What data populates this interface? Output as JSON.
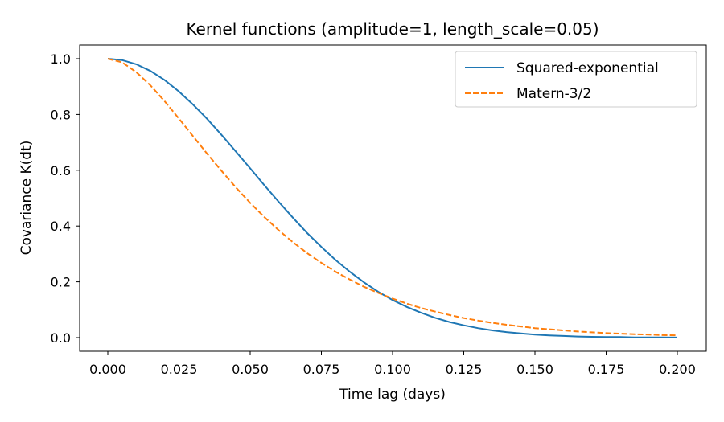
{
  "chart_data": {
    "type": "line",
    "title": "Kernel functions (amplitude=1, length_scale=0.05)",
    "xlabel": "Time lag (days)",
    "ylabel": "Covariance K(dt)",
    "xlim": [
      -0.01,
      0.21
    ],
    "ylim": [
      -0.05,
      1.05
    ],
    "xticks": [
      "0.000",
      "0.025",
      "0.050",
      "0.075",
      "0.100",
      "0.125",
      "0.150",
      "0.175",
      "0.200"
    ],
    "xtick_values": [
      0,
      0.025,
      0.05,
      0.075,
      0.1,
      0.125,
      0.15,
      0.175,
      0.2
    ],
    "yticks": [
      "0.0",
      "0.2",
      "0.4",
      "0.6",
      "0.8",
      "1.0"
    ],
    "ytick_values": [
      0,
      0.2,
      0.4,
      0.6,
      0.8,
      1.0
    ],
    "grid": false,
    "legend_position": "top-right",
    "x": [
      0,
      0.005,
      0.01,
      0.015,
      0.02,
      0.025,
      0.03,
      0.035,
      0.04,
      0.045,
      0.05,
      0.055,
      0.06,
      0.065,
      0.07,
      0.075,
      0.08,
      0.085,
      0.09,
      0.095,
      0.1,
      0.105,
      0.11,
      0.115,
      0.12,
      0.125,
      0.13,
      0.135,
      0.14,
      0.145,
      0.15,
      0.155,
      0.16,
      0.165,
      0.17,
      0.175,
      0.18,
      0.185,
      0.19,
      0.195,
      0.2
    ],
    "series": [
      {
        "name": "Squared-exponential",
        "color": "#1f77b4",
        "style": "solid",
        "values": [
          1,
          0.995,
          0.98,
          0.956,
          0.923,
          0.882,
          0.835,
          0.783,
          0.726,
          0.667,
          0.607,
          0.546,
          0.487,
          0.43,
          0.375,
          0.325,
          0.278,
          0.236,
          0.198,
          0.164,
          0.135,
          0.11,
          0.089,
          0.071,
          0.056,
          0.044,
          0.034,
          0.026,
          0.02,
          0.015,
          0.011,
          0.008,
          0.006,
          0.004,
          0.003,
          0.002,
          0.002,
          0.001,
          0.001,
          0.0005,
          0.0003
        ]
      },
      {
        "name": "Matern-3/2",
        "color": "#ff7f0e",
        "style": "dashed",
        "values": [
          1,
          0.987,
          0.952,
          0.904,
          0.847,
          0.785,
          0.721,
          0.658,
          0.597,
          0.538,
          0.483,
          0.432,
          0.385,
          0.342,
          0.303,
          0.268,
          0.236,
          0.208,
          0.182,
          0.16,
          0.14,
          0.122,
          0.106,
          0.093,
          0.081,
          0.07,
          0.061,
          0.053,
          0.046,
          0.04,
          0.034,
          0.03,
          0.026,
          0.022,
          0.019,
          0.016,
          0.014,
          0.012,
          0.011,
          0.009,
          0.008
        ]
      }
    ]
  }
}
